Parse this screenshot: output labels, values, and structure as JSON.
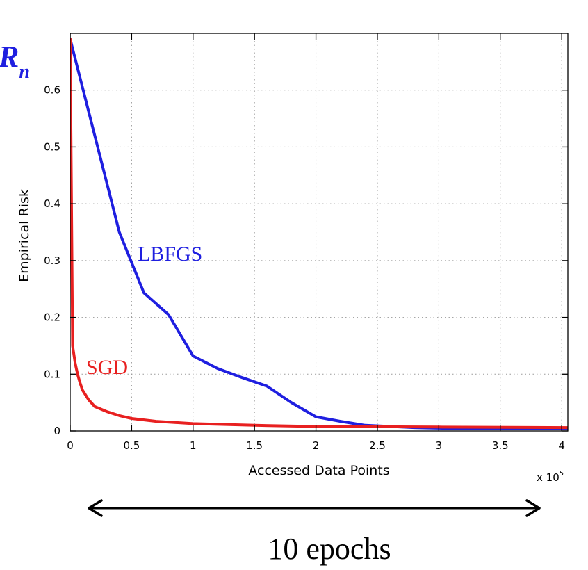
{
  "chart_data": {
    "type": "line",
    "title": "",
    "corner_label": {
      "main": "R",
      "sub": "n"
    },
    "xlabel": "Accessed Data Points",
    "ylabel": "Empirical Risk",
    "x_multiplier": {
      "base": "x 10",
      "exponent": "5"
    },
    "xlim": [
      0,
      4.05
    ],
    "ylim": [
      0,
      0.7
    ],
    "xticks": [
      0,
      0.5,
      1,
      1.5,
      2,
      2.5,
      3,
      3.5,
      4
    ],
    "xtick_labels": [
      "0",
      "0.5",
      "1",
      "1.5",
      "2",
      "2.5",
      "3",
      "3.5",
      "4"
    ],
    "yticks": [
      0,
      0.1,
      0.2,
      0.3,
      0.4,
      0.5,
      0.6
    ],
    "ytick_labels": [
      "0",
      "0.1",
      "0.2",
      "0.3",
      "0.4",
      "0.5",
      "0.6"
    ],
    "grid": true,
    "series": [
      {
        "name": "LBFGS",
        "color": "#1f1fe0",
        "x": [
          0,
          0.2,
          0.4,
          0.6,
          0.8,
          1.0,
          1.2,
          1.4,
          1.6,
          1.8,
          2.0,
          2.2,
          2.4,
          2.8,
          3.2,
          4.05
        ],
        "y": [
          0.69,
          0.52,
          0.35,
          0.243,
          0.205,
          0.132,
          0.11,
          0.094,
          0.079,
          0.05,
          0.025,
          0.017,
          0.01,
          0.006,
          0.004,
          0.004
        ]
      },
      {
        "name": "SGD",
        "color": "#e82020",
        "x": [
          0,
          0.02,
          0.04,
          0.06,
          0.08,
          0.1,
          0.15,
          0.2,
          0.3,
          0.4,
          0.5,
          0.7,
          1.0,
          1.5,
          2.0,
          3.0,
          4.05
        ],
        "y": [
          0.69,
          0.15,
          0.12,
          0.1,
          0.085,
          0.072,
          0.055,
          0.043,
          0.034,
          0.027,
          0.022,
          0.017,
          0.013,
          0.01,
          0.008,
          0.007,
          0.006
        ]
      }
    ],
    "annotations": [
      {
        "text": "LBFGS",
        "series": "LBFGS"
      },
      {
        "text": "SGD",
        "series": "SGD"
      }
    ],
    "arrow_caption": "10 epochs"
  }
}
